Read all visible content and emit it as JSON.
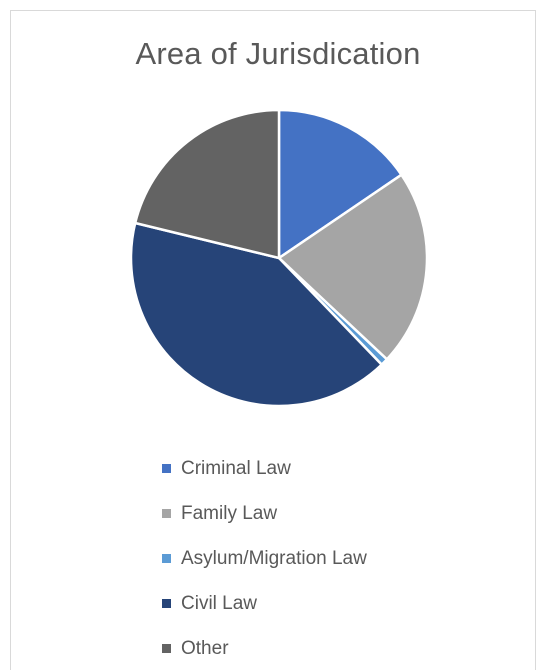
{
  "chart_data": {
    "type": "pie",
    "title": "Area of Jurisdication",
    "legend_position": "bottom",
    "start_angle_deg": 0,
    "direction": "clockwise",
    "slices": [
      {
        "name": "Criminal Law",
        "value": 15.5,
        "color": "#4472C4"
      },
      {
        "name": "Family Law",
        "value": 21.5,
        "color": "#A5A5A5"
      },
      {
        "name": "Asylum/Migration Law",
        "value": 0.8,
        "color": "#5B9BD5"
      },
      {
        "name": "Civil Law",
        "value": 41.0,
        "color": "#264478"
      },
      {
        "name": "Other",
        "value": 21.2,
        "color": "#636363"
      }
    ]
  }
}
